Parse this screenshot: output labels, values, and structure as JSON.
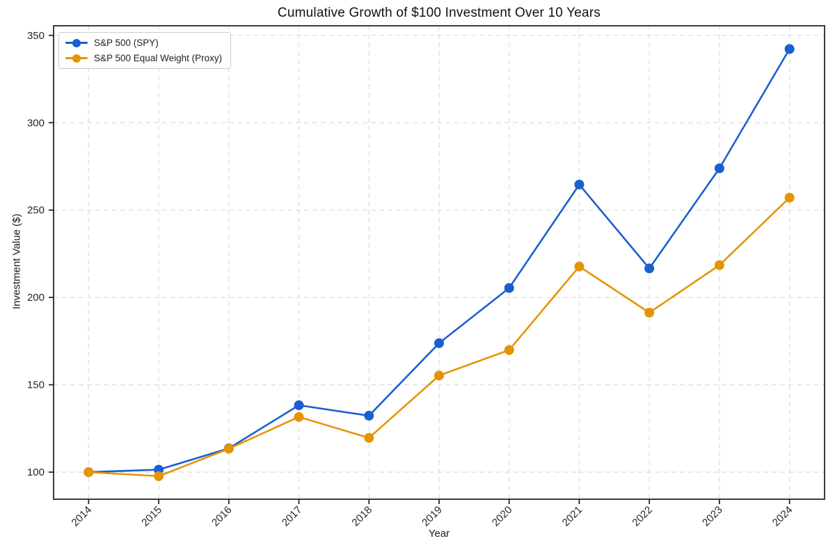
{
  "chart_data": {
    "type": "line",
    "title": "Cumulative Growth of $100 Investment Over 10 Years",
    "xlabel": "Year",
    "ylabel": "Investment Value ($)",
    "categories": [
      "2014",
      "2015",
      "2016",
      "2017",
      "2018",
      "2019",
      "2020",
      "2021",
      "2022",
      "2023",
      "2024"
    ],
    "series": [
      {
        "name": "S&P 500 (SPY)",
        "color": "#1a5fd0",
        "values": [
          100,
          101.4,
          113.6,
          138.3,
          132.3,
          173.8,
          205.4,
          264.6,
          216.6,
          273.9,
          342.2
        ]
      },
      {
        "name": "S&P 500 Equal Weight (Proxy)",
        "color": "#e59400",
        "values": [
          100,
          97.7,
          113.4,
          131.6,
          119.6,
          155.3,
          169.9,
          217.7,
          191.3,
          218.5,
          257.1
        ]
      }
    ],
    "yticks": [
      100,
      150,
      200,
      250,
      300,
      350
    ],
    "ylim": [
      84.5,
      355.5
    ],
    "grid": true,
    "grid_color": "#dcdcdc",
    "axis_color": "#262626",
    "background_color": "#ffffff",
    "legend_position": "upper left",
    "marker": "circle",
    "x_tick_rotation_deg": 45
  }
}
